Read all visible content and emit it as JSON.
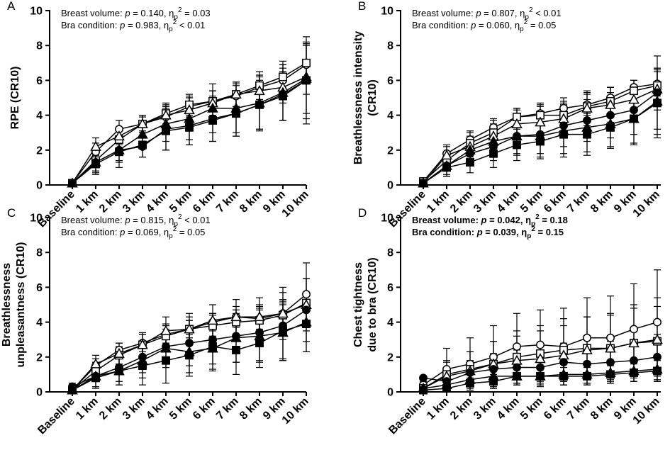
{
  "chart_data": [
    {
      "type": "line",
      "panel": "A",
      "ylabel_lines": [
        "RPE (CR10)"
      ],
      "ylim": [
        0,
        10
      ],
      "yticks": [
        "0",
        "2",
        "4",
        "6",
        "8",
        "10"
      ],
      "categories": [
        "Baseline",
        "1 km",
        "2 km",
        "3 km",
        "4 km",
        "5 km",
        "6 km",
        "7 km",
        "8 km",
        "9 km",
        "10 km"
      ],
      "annotations": [
        {
          "label": "Breast volume: ",
          "p_prefix": "p",
          "p_value": " = 0.140, ",
          "eta": "η",
          "eta_sub": "p",
          "eta_sup": "2",
          "eta_value": " = 0.03",
          "bold": false
        },
        {
          "label": "Bra condition: ",
          "p_prefix": "p",
          "p_value": " = 0.983, ",
          "eta": "η",
          "eta_sub": "p",
          "eta_sup": "2",
          "eta_value": " < 0.01",
          "bold": false
        }
      ],
      "series": [
        {
          "marker": "circle-open",
          "values": [
            0.1,
            1.9,
            3.2,
            3.5,
            3.9,
            4.5,
            4.8,
            5.1,
            5.6,
            6.0,
            6.9
          ],
          "sd": [
            0.2,
            0.5,
            0.5,
            0.4,
            0.6,
            0.6,
            0.6,
            0.6,
            0.7,
            0.9,
            1.1
          ]
        },
        {
          "marker": "square-open",
          "values": [
            0.1,
            1.4,
            2.6,
            3.5,
            4.1,
            4.6,
            4.8,
            5.2,
            5.7,
            6.2,
            7.0
          ],
          "sd": [
            0.2,
            0.6,
            0.6,
            0.5,
            0.6,
            0.6,
            0.6,
            0.7,
            0.8,
            0.9,
            1.1
          ]
        },
        {
          "marker": "triangle-open",
          "values": [
            0.1,
            2.2,
            2.8,
            3.5,
            4.0,
            4.3,
            4.7,
            5.2,
            5.4,
            5.6,
            6.2
          ],
          "sd": [
            0.2,
            0.5,
            0.5,
            0.5,
            0.6,
            0.7,
            0.7,
            0.7,
            0.8,
            0.9,
            1.0
          ]
        },
        {
          "marker": "circle-filled",
          "values": [
            0.1,
            1.3,
            2.0,
            2.2,
            3.2,
            3.4,
            3.8,
            4.1,
            4.6,
            5.2,
            6.0
          ],
          "sd": [
            0.2,
            0.5,
            0.6,
            0.6,
            1.2,
            1.1,
            1.3,
            1.3,
            1.4,
            1.5,
            2.5
          ]
        },
        {
          "marker": "triangle-filled",
          "values": [
            0.1,
            1.3,
            2.0,
            2.9,
            3.5,
            3.8,
            4.4,
            4.4,
            4.7,
            5.3,
            6.1
          ],
          "sd": [
            0.2,
            0.6,
            0.7,
            0.7,
            1.0,
            1.2,
            1.4,
            1.4,
            1.6,
            1.6,
            2.0
          ]
        },
        {
          "marker": "square-filled",
          "values": [
            0.1,
            1.2,
            1.9,
            2.3,
            3.1,
            3.3,
            3.7,
            4.1,
            4.6,
            5.1,
            6.0
          ],
          "sd": [
            0.2,
            0.6,
            0.9,
            0.7,
            1.1,
            1.0,
            1.2,
            1.3,
            1.4,
            1.4,
            2.2
          ]
        }
      ]
    },
    {
      "type": "line",
      "panel": "B",
      "ylabel_lines": [
        "Breathlessness intensity",
        "(CR10)"
      ],
      "ylim": [
        0,
        10
      ],
      "yticks": [
        "0",
        "2",
        "4",
        "6",
        "8",
        "10"
      ],
      "categories": [
        "Baseline",
        "1 km",
        "2 km",
        "3 km",
        "4 km",
        "5 km",
        "6 km",
        "7 km",
        "8 km",
        "9 km",
        "10 km"
      ],
      "annotations": [
        {
          "label": "Breast volume: ",
          "p_prefix": "p",
          "p_value": " = 0.807, ",
          "eta": "η",
          "eta_sub": "p",
          "eta_sup": "2",
          "eta_value": " < 0.01",
          "bold": false
        },
        {
          "label": "Bra condition: ",
          "p_prefix": "p",
          "p_value": " = 0.060, ",
          "eta": "η",
          "eta_sub": "p",
          "eta_sup": "2",
          "eta_value": " = 0.05",
          "bold": false
        }
      ],
      "series": [
        {
          "marker": "circle-open",
          "values": [
            0.2,
            1.8,
            2.6,
            3.3,
            3.9,
            4.1,
            4.4,
            4.6,
            5.0,
            5.6,
            5.8
          ],
          "sd": [
            0.2,
            0.5,
            0.5,
            0.5,
            0.5,
            0.6,
            0.6,
            0.6,
            0.6,
            0.4,
            0.7
          ]
        },
        {
          "marker": "square-open",
          "values": [
            0.2,
            1.4,
            2.4,
            3.0,
            3.9,
            4.0,
            4.0,
            4.5,
            4.8,
            5.4,
            5.7
          ],
          "sd": [
            0.2,
            0.5,
            0.6,
            0.7,
            0.5,
            0.6,
            0.7,
            0.8,
            0.8,
            0.6,
            0.9
          ]
        },
        {
          "marker": "triangle-open",
          "values": [
            0.1,
            1.7,
            2.2,
            2.8,
            3.5,
            3.6,
            3.8,
            4.4,
            4.6,
            4.9,
            5.5
          ],
          "sd": [
            0.2,
            0.5,
            0.6,
            0.7,
            0.8,
            0.9,
            1.0,
            1.0,
            1.0,
            1.1,
            1.2
          ]
        },
        {
          "marker": "circle-filled",
          "values": [
            0.1,
            1.1,
            1.8,
            2.2,
            2.8,
            2.9,
            3.4,
            3.7,
            4.0,
            4.3,
            5.3
          ],
          "sd": [
            0.2,
            0.5,
            0.6,
            0.8,
            1.0,
            1.1,
            1.2,
            1.2,
            1.3,
            1.4,
            2.1
          ]
        },
        {
          "marker": "triangle-filled",
          "values": [
            0.1,
            1.1,
            2.0,
            2.5,
            2.8,
            2.8,
            3.1,
            3.3,
            3.5,
            3.8,
            4.8
          ],
          "sd": [
            0.2,
            0.6,
            0.7,
            0.9,
            1.1,
            1.2,
            1.3,
            1.4,
            1.4,
            1.5,
            1.9
          ]
        },
        {
          "marker": "square-filled",
          "values": [
            0.1,
            1.0,
            1.3,
            1.8,
            2.3,
            2.5,
            2.9,
            2.9,
            3.3,
            3.8,
            4.7
          ],
          "sd": [
            0.2,
            0.5,
            0.6,
            0.8,
            0.9,
            1.0,
            1.3,
            1.2,
            1.1,
            1.4,
            2.0
          ]
        }
      ]
    },
    {
      "type": "line",
      "panel": "C",
      "ylabel_lines": [
        "Breathlessness",
        "unpleasantness (CR10)"
      ],
      "ylim": [
        0,
        10
      ],
      "yticks": [
        "0",
        "2",
        "4",
        "6",
        "8",
        "10"
      ],
      "categories": [
        "Baseline",
        "1 km",
        "2 km",
        "3 km",
        "4 km",
        "5 km",
        "6 km",
        "7 km",
        "8 km",
        "9 km",
        "10 km"
      ],
      "annotations": [
        {
          "label": "Breast volume: ",
          "p_prefix": "p",
          "p_value": " = 0.815, ",
          "eta": "η",
          "eta_sub": "p",
          "eta_sup": "2",
          "eta_value": " < 0.01",
          "bold": false
        },
        {
          "label": "Bra condition: ",
          "p_prefix": "p",
          "p_value": " = 0.069, ",
          "eta": "η",
          "eta_sub": "p",
          "eta_sup": "2",
          "eta_value": " = 0.05",
          "bold": false
        }
      ],
      "series": [
        {
          "marker": "circle-open",
          "values": [
            0.1,
            1.5,
            2.4,
            2.8,
            3.3,
            3.6,
            4.0,
            4.3,
            4.2,
            4.5,
            5.6
          ],
          "sd": [
            0.2,
            0.4,
            0.4,
            0.5,
            0.5,
            0.5,
            0.5,
            0.6,
            0.6,
            0.6,
            1.8
          ]
        },
        {
          "marker": "square-open",
          "values": [
            0.1,
            1.2,
            2.1,
            2.7,
            3.2,
            3.6,
            3.8,
            4.0,
            4.1,
            4.4,
            5.1
          ],
          "sd": [
            0.2,
            0.5,
            0.5,
            0.6,
            0.7,
            0.7,
            0.7,
            0.7,
            0.8,
            0.9,
            1.4
          ]
        },
        {
          "marker": "triangle-open",
          "values": [
            0.1,
            1.6,
            2.2,
            2.7,
            3.5,
            3.6,
            4.1,
            4.3,
            4.3,
            4.5,
            5.0
          ],
          "sd": [
            0.2,
            0.5,
            0.6,
            0.7,
            0.8,
            0.9,
            0.9,
            1.0,
            1.1,
            1.5,
            1.5
          ]
        },
        {
          "marker": "circle-filled",
          "values": [
            0.3,
            0.9,
            1.4,
            2.0,
            2.6,
            2.8,
            3.0,
            3.2,
            3.4,
            3.8,
            4.7
          ],
          "sd": [
            0.2,
            0.6,
            0.8,
            0.9,
            1.2,
            1.3,
            1.4,
            1.5,
            1.6,
            1.9,
            1.8
          ]
        },
        {
          "marker": "triangle-filled",
          "values": [
            0.1,
            0.9,
            1.2,
            1.8,
            2.5,
            2.3,
            2.5,
            3.1,
            3.2,
            3.4,
            4.0
          ],
          "sd": [
            0.2,
            0.6,
            0.8,
            1.0,
            1.1,
            1.2,
            1.3,
            1.4,
            1.5,
            1.6,
            1.7
          ]
        },
        {
          "marker": "square-filled",
          "values": [
            0.1,
            0.8,
            1.2,
            1.5,
            1.8,
            2.1,
            2.6,
            2.4,
            2.8,
            3.5,
            3.9
          ],
          "sd": [
            0.2,
            0.6,
            0.8,
            1.1,
            1.3,
            1.2,
            1.3,
            1.4,
            1.4,
            1.7,
            1.6
          ]
        }
      ]
    },
    {
      "type": "line",
      "panel": "D",
      "ylabel_lines": [
        "Chest tightness",
        "due to bra (CR10)"
      ],
      "ylim": [
        0,
        10
      ],
      "yticks": [
        "0",
        "2",
        "4",
        "6",
        "8",
        "10"
      ],
      "categories": [
        "Baseline",
        "1 km",
        "2 km",
        "3 km",
        "4 km",
        "5 km",
        "6 km",
        "7 km",
        "8 km",
        "9 km",
        "10 km"
      ],
      "annotations": [
        {
          "label": "Breast volume: ",
          "p_prefix": "p",
          "p_value": " = 0.042, ",
          "eta": "η",
          "eta_sub": "p",
          "eta_sup": "2",
          "eta_value": " = 0.18",
          "bold": true
        },
        {
          "label": "Bra condition: ",
          "p_prefix": "p",
          "p_value": " = 0.039, ",
          "eta": "η",
          "eta_sub": "p",
          "eta_sup": "2",
          "eta_value": " = 0.15",
          "bold": true
        }
      ],
      "series": [
        {
          "marker": "circle-open",
          "values": [
            0.4,
            1.3,
            1.6,
            2.0,
            2.6,
            2.7,
            2.6,
            3.1,
            3.1,
            3.6,
            4.0
          ],
          "sd": [
            0.2,
            1.2,
            1.5,
            1.8,
            1.9,
            2.0,
            2.2,
            2.3,
            2.4,
            2.6,
            3.0
          ]
        },
        {
          "marker": "square-open",
          "values": [
            0.2,
            1.0,
            1.3,
            1.6,
            2.0,
            2.2,
            2.4,
            2.5,
            2.5,
            2.8,
            2.9
          ],
          "sd": [
            0.2,
            0.8,
            1.0,
            1.3,
            1.5,
            1.6,
            1.8,
            1.8,
            1.9,
            2.0,
            2.0
          ]
        },
        {
          "marker": "triangle-open",
          "values": [
            0.2,
            0.9,
            1.2,
            1.6,
            1.8,
            1.9,
            2.1,
            2.4,
            2.5,
            2.8,
            3.0
          ],
          "sd": [
            0.2,
            0.8,
            1.1,
            1.3,
            1.4,
            1.6,
            1.7,
            1.9,
            2.0,
            2.2,
            2.4
          ]
        },
        {
          "marker": "circle-filled",
          "values": [
            0.8,
            0.6,
            1.1,
            1.3,
            1.4,
            1.4,
            1.7,
            1.6,
            1.7,
            1.8,
            2.0
          ],
          "sd": [
            0.1,
            0.5,
            0.7,
            0.9,
            1.0,
            1.0,
            1.1,
            1.1,
            1.2,
            1.2,
            1.3
          ]
        },
        {
          "marker": "triangle-filled",
          "values": [
            0.2,
            0.4,
            0.7,
            0.9,
            0.9,
            0.9,
            1.0,
            1.0,
            1.1,
            1.2,
            1.3
          ],
          "sd": [
            0.1,
            0.3,
            0.4,
            0.5,
            0.5,
            0.5,
            0.6,
            0.6,
            0.6,
            0.6,
            0.7
          ]
        },
        {
          "marker": "square-filled",
          "values": [
            0.1,
            0.2,
            0.5,
            0.6,
            0.9,
            0.9,
            0.9,
            0.9,
            1.0,
            1.1,
            1.2
          ],
          "sd": [
            0.1,
            0.2,
            0.3,
            0.4,
            0.4,
            0.4,
            0.5,
            0.5,
            0.5,
            0.5,
            0.6
          ]
        }
      ]
    }
  ]
}
